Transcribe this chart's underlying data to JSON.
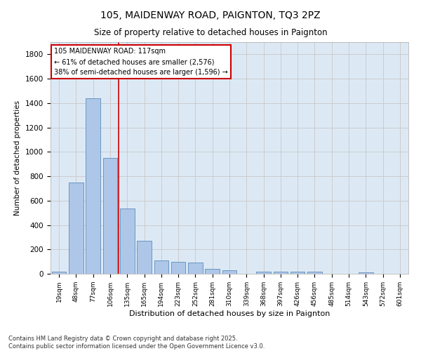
{
  "title": "105, MAIDENWAY ROAD, PAIGNTON, TQ3 2PZ",
  "subtitle": "Size of property relative to detached houses in Paignton",
  "xlabel": "Distribution of detached houses by size in Paignton",
  "ylabel": "Number of detached properties",
  "categories": [
    "19sqm",
    "48sqm",
    "77sqm",
    "106sqm",
    "135sqm",
    "165sqm",
    "194sqm",
    "223sqm",
    "252sqm",
    "281sqm",
    "310sqm",
    "339sqm",
    "368sqm",
    "397sqm",
    "426sqm",
    "456sqm",
    "485sqm",
    "514sqm",
    "543sqm",
    "572sqm",
    "601sqm"
  ],
  "values": [
    20,
    750,
    1440,
    950,
    535,
    270,
    110,
    100,
    90,
    40,
    27,
    0,
    18,
    15,
    20,
    17,
    0,
    0,
    10,
    0,
    0
  ],
  "bar_color": "#aec6e8",
  "bar_edge_color": "#5b8db8",
  "grid_color": "#cccccc",
  "bg_color": "#dce9f5",
  "vline_x": 3.48,
  "vline_color": "#cc0000",
  "annotation_text": "105 MAIDENWAY ROAD: 117sqm\n← 61% of detached houses are smaller (2,576)\n38% of semi-detached houses are larger (1,596) →",
  "annotation_box_color": "#cc0000",
  "footnote": "Contains HM Land Registry data © Crown copyright and database right 2025.\nContains public sector information licensed under the Open Government Licence v3.0.",
  "ylim": [
    0,
    1900
  ],
  "yticks": [
    0,
    200,
    400,
    600,
    800,
    1000,
    1200,
    1400,
    1600,
    1800
  ]
}
